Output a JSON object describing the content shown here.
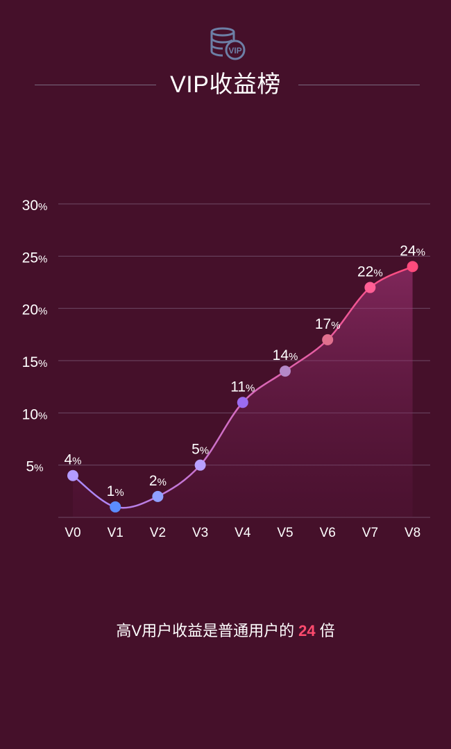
{
  "header": {
    "title": "VIP收益榜",
    "icon": "vip-database-icon",
    "icon_badge": "VIP"
  },
  "caption": {
    "prefix": "高V用户收益是普通用户的",
    "multiplier": "24",
    "suffix": "倍"
  },
  "colors": {
    "background": "#45102a",
    "line_start": "#a98bff",
    "line_end": "#ff4b7d",
    "highlight": "#ff4b6e"
  },
  "chart_data": {
    "type": "line",
    "categories": [
      "V0",
      "V1",
      "V2",
      "V3",
      "V4",
      "V5",
      "V6",
      "V7",
      "V8"
    ],
    "series": [
      {
        "values": [
          4,
          1,
          2,
          5,
          11,
          14,
          17,
          22,
          24
        ]
      }
    ],
    "point_colors": [
      "#b39bff",
      "#5b8cff",
      "#8fa0ff",
      "#b8a0ff",
      "#9b6cf0",
      "#b489c8",
      "#e0708e",
      "#ff5f95",
      "#ff4b7d"
    ],
    "data_labels": [
      "4",
      "1",
      "2",
      "5",
      "11",
      "14",
      "17",
      "22",
      "24"
    ],
    "label_unit": "%",
    "y_ticks": [
      "5",
      "10",
      "15",
      "20",
      "25",
      "30"
    ],
    "y_tick_values": [
      5,
      10,
      15,
      20,
      25,
      30
    ],
    "y_unit": "%",
    "ylim": [
      0,
      30
    ],
    "grid": true,
    "area_fill": true,
    "smooth": true
  }
}
